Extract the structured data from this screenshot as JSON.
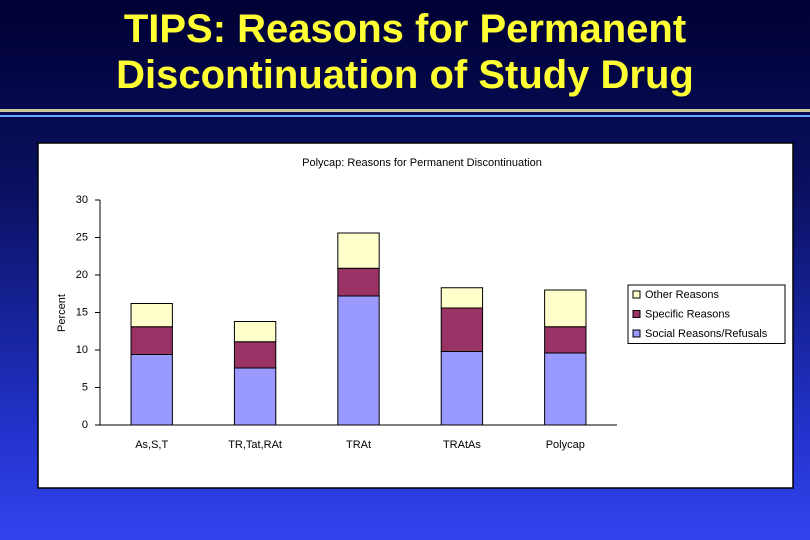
{
  "slide_title": [
    "TIPS: Reasons for Permanent",
    "Discontinuation of Study Drug"
  ],
  "chart_data": {
    "type": "stacked_bar",
    "title": "Polycap: Reasons for Permanent Discontinuation",
    "y_label": "Percent",
    "categories": [
      "As,S,T",
      "TR,Tat,RAt",
      "TRAt",
      "TRAtAs",
      "Polycap"
    ],
    "series": [
      {
        "name": "Social Reasons/Refusals",
        "color": "#9999ff",
        "values": [
          9.4,
          7.6,
          17.2,
          9.8,
          9.6
        ]
      },
      {
        "name": "Specific Reasons",
        "color": "#993366",
        "values": [
          3.7,
          3.5,
          3.7,
          5.8,
          3.5
        ]
      },
      {
        "name": "Other Reasons",
        "color": "#ffffcc",
        "values": [
          3.1,
          2.7,
          4.7,
          2.7,
          4.9
        ]
      }
    ],
    "ylim": [
      0,
      30
    ],
    "yticks": [
      0,
      5,
      10,
      15,
      20,
      25,
      30
    ],
    "grid": false,
    "legend": "right"
  }
}
